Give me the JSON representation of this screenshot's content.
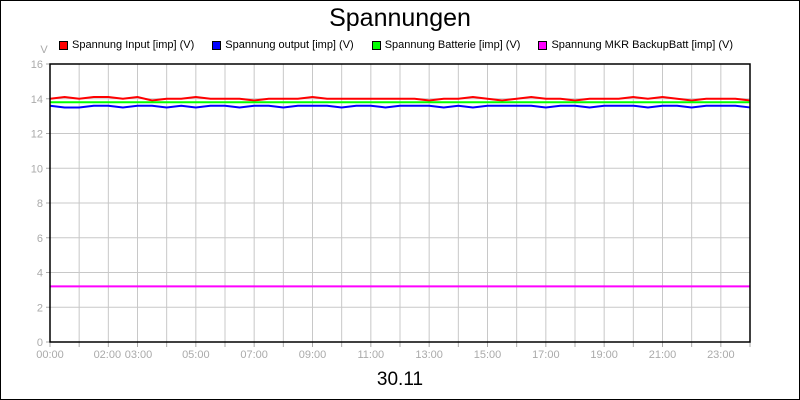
{
  "chart_data": {
    "type": "line",
    "title": "Spannungen",
    "xlabel": "30.11",
    "ylabel": "V",
    "ylim": [
      0,
      16
    ],
    "yticks": [
      "0",
      "2",
      "4",
      "6",
      "8",
      "10",
      "12",
      "14",
      "16"
    ],
    "xticks": [
      "00:00",
      "02:00",
      "03:00",
      "05:00",
      "07:00",
      "09:00",
      "11:00",
      "13:00",
      "15:00",
      "17:00",
      "19:00",
      "21:00",
      "23:00"
    ],
    "xlim_hours": [
      0,
      24
    ],
    "grid": true,
    "legend_position": "top",
    "x": [
      "00:00",
      "00:30",
      "01:00",
      "01:30",
      "02:00",
      "02:30",
      "03:00",
      "03:30",
      "04:00",
      "04:30",
      "05:00",
      "05:30",
      "06:00",
      "06:30",
      "07:00",
      "07:30",
      "08:00",
      "08:30",
      "09:00",
      "09:30",
      "10:00",
      "10:30",
      "11:00",
      "11:30",
      "12:00",
      "12:30",
      "13:00",
      "13:30",
      "14:00",
      "14:30",
      "15:00",
      "15:30",
      "16:00",
      "16:30",
      "17:00",
      "17:30",
      "18:00",
      "18:30",
      "19:00",
      "19:30",
      "20:00",
      "20:30",
      "21:00",
      "21:30",
      "22:00",
      "22:30",
      "23:00",
      "23:30",
      "24:00"
    ],
    "series": [
      {
        "name": "Spannung Input [imp] (V)",
        "color": "#ff0000",
        "values": [
          14.0,
          14.1,
          14.0,
          14.1,
          14.1,
          14.0,
          14.1,
          13.9,
          14.0,
          14.0,
          14.1,
          14.0,
          14.0,
          14.0,
          13.9,
          14.0,
          14.0,
          14.0,
          14.1,
          14.0,
          14.0,
          14.0,
          14.0,
          14.0,
          14.0,
          14.0,
          13.9,
          14.0,
          14.0,
          14.1,
          14.0,
          13.9,
          14.0,
          14.1,
          14.0,
          14.0,
          13.9,
          14.0,
          14.0,
          14.0,
          14.1,
          14.0,
          14.1,
          14.0,
          13.9,
          14.0,
          14.0,
          14.0,
          13.9
        ]
      },
      {
        "name": "Spannung output [imp] (V)",
        "color": "#0000ff",
        "values": [
          13.6,
          13.5,
          13.5,
          13.6,
          13.6,
          13.5,
          13.6,
          13.6,
          13.5,
          13.6,
          13.5,
          13.6,
          13.6,
          13.5,
          13.6,
          13.6,
          13.5,
          13.6,
          13.6,
          13.6,
          13.5,
          13.6,
          13.6,
          13.5,
          13.6,
          13.6,
          13.6,
          13.5,
          13.6,
          13.5,
          13.6,
          13.6,
          13.6,
          13.6,
          13.5,
          13.6,
          13.6,
          13.5,
          13.6,
          13.6,
          13.6,
          13.5,
          13.6,
          13.6,
          13.5,
          13.6,
          13.6,
          13.6,
          13.5
        ]
      },
      {
        "name": "Spannung Batterie [imp] (V)",
        "color": "#00ff00",
        "values": [
          13.8,
          13.8,
          13.8,
          13.8,
          13.8,
          13.8,
          13.8,
          13.8,
          13.8,
          13.8,
          13.8,
          13.8,
          13.8,
          13.8,
          13.8,
          13.8,
          13.8,
          13.8,
          13.8,
          13.8,
          13.8,
          13.8,
          13.8,
          13.8,
          13.8,
          13.8,
          13.8,
          13.8,
          13.8,
          13.8,
          13.8,
          13.8,
          13.8,
          13.8,
          13.8,
          13.8,
          13.8,
          13.8,
          13.8,
          13.8,
          13.8,
          13.8,
          13.8,
          13.8,
          13.8,
          13.8,
          13.8,
          13.8,
          13.8
        ]
      },
      {
        "name": "Spannung MKR BackupBatt [imp] (V)",
        "color": "#ff00ff",
        "values": [
          3.2,
          3.2,
          3.2,
          3.2,
          3.2,
          3.2,
          3.2,
          3.2,
          3.2,
          3.2,
          3.2,
          3.2,
          3.2,
          3.2,
          3.2,
          3.2,
          3.2,
          3.2,
          3.2,
          3.2,
          3.2,
          3.2,
          3.2,
          3.2,
          3.2,
          3.2,
          3.2,
          3.2,
          3.2,
          3.2,
          3.2,
          3.2,
          3.2,
          3.2,
          3.2,
          3.2,
          3.2,
          3.2,
          3.2,
          3.2,
          3.2,
          3.2,
          3.2,
          3.2,
          3.2,
          3.2,
          3.2,
          3.2,
          3.2
        ]
      }
    ]
  }
}
